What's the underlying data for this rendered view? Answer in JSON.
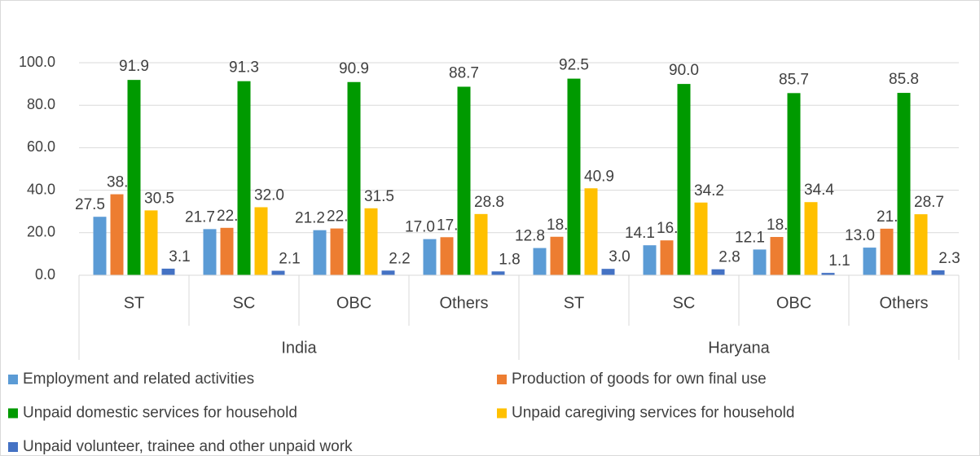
{
  "chart_data": {
    "type": "bar",
    "groups": [
      {
        "name": "India",
        "categories": [
          "ST",
          "SC",
          "OBC",
          "Others"
        ]
      },
      {
        "name": "Haryana",
        "categories": [
          "ST",
          "SC",
          "OBC",
          "Others"
        ]
      }
    ],
    "series": [
      {
        "name": "Employment and related activities",
        "color": "#5b9bd5",
        "values": [
          27.5,
          21.7,
          21.2,
          17.0,
          12.8,
          14.1,
          12.1,
          13.0
        ],
        "value_labels": [
          "27.5",
          "21.7",
          "21.2",
          "17.0",
          "12.8",
          "14.1",
          "12.1",
          "13.0"
        ]
      },
      {
        "name": "Production of goods for own final use",
        "color": "#ed7d31",
        "values": [
          38.1,
          22.3,
          22.0,
          17.9,
          18.1,
          16.4,
          18.0,
          21.9
        ],
        "value_labels": [
          "38.1",
          "22.3",
          "22.0",
          "17.9",
          "18.1",
          "16.4",
          "18.0",
          "21.9"
        ]
      },
      {
        "name": "Unpaid domestic services for household",
        "color": "#009a00",
        "values": [
          91.9,
          91.3,
          90.9,
          88.7,
          92.5,
          90.0,
          85.7,
          85.8
        ],
        "value_labels": [
          "91.9",
          "91.3",
          "90.9",
          "88.7",
          "92.5",
          "90.0",
          "85.7",
          "85.8"
        ]
      },
      {
        "name": "Unpaid caregiving services for household",
        "color": "#ffc000",
        "values": [
          30.5,
          32.0,
          31.5,
          28.8,
          40.9,
          34.2,
          34.4,
          28.7
        ],
        "value_labels": [
          "30.5",
          "32.0",
          "31.5",
          "28.8",
          "40.9",
          "34.2",
          "34.4",
          "28.7"
        ]
      },
      {
        "name": "Unpaid volunteer, trainee and other unpaid work",
        "color": "#4472c4",
        "values": [
          3.1,
          2.1,
          2.2,
          1.8,
          3.0,
          2.8,
          1.1,
          2.3
        ],
        "value_labels": [
          "3.1",
          "2.1",
          "2.2",
          "1.8",
          "3.0",
          "2.8",
          "1.1",
          "2.3"
        ]
      }
    ],
    "ylim": [
      0,
      100
    ],
    "yticks": [
      {
        "value": 0,
        "label": "0.0"
      },
      {
        "value": 20,
        "label": "20.0"
      },
      {
        "value": 40,
        "label": "40.0"
      },
      {
        "value": 60,
        "label": "60.0"
      },
      {
        "value": 80,
        "label": "80.0"
      },
      {
        "value": 100,
        "label": "100.0"
      }
    ],
    "legend": "bottom"
  }
}
